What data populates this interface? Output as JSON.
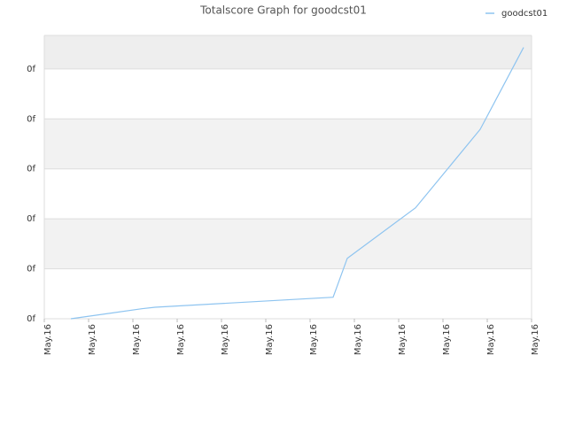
{
  "chart_data": {
    "type": "line",
    "title": "Totalscore Graph for goodcst01",
    "x": [
      0.6,
      2.2,
      2.5,
      6.52,
      6.84,
      8.38,
      9.84,
      10.82
    ],
    "series": [
      {
        "name": "goodcst01",
        "color": "#8ec4f0",
        "values": [
          0,
          0.2,
          0.23,
          0.43,
          1.21,
          2.22,
          3.79,
          5.43
        ]
      }
    ],
    "xlim": [
      0,
      11
    ],
    "xticks": [
      {
        "value": 0,
        "label": "May.16"
      },
      {
        "value": 1,
        "label": "May.16"
      },
      {
        "value": 2,
        "label": "May.16"
      },
      {
        "value": 3,
        "label": "May.16"
      },
      {
        "value": 4,
        "label": "May.16"
      },
      {
        "value": 5,
        "label": "May.16"
      },
      {
        "value": 6,
        "label": "May.16"
      },
      {
        "value": 7,
        "label": "May.16"
      },
      {
        "value": 8,
        "label": "May.16"
      },
      {
        "value": 9,
        "label": "May.16"
      },
      {
        "value": 10,
        "label": "May.16"
      },
      {
        "value": 11,
        "label": "May.16"
      }
    ],
    "ylim": [
      0,
      5.67
    ],
    "yticks": [
      {
        "value": 0,
        "label": "0f"
      },
      {
        "value": 1,
        "label": "0f"
      },
      {
        "value": 2,
        "label": "0f"
      },
      {
        "value": 3,
        "label": "0f"
      },
      {
        "value": 4,
        "label": "0f"
      },
      {
        "value": 5,
        "label": "0f"
      }
    ],
    "grid": true,
    "legend": "top-right"
  }
}
